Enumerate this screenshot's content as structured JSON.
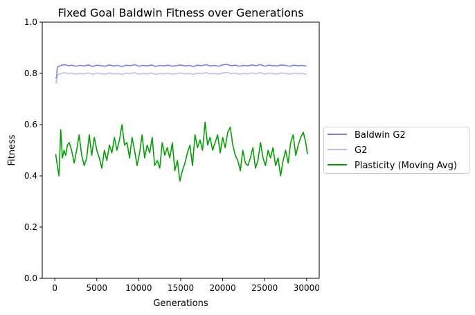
{
  "chart_data": {
    "type": "line",
    "title": "Fixed Goal Baldwin Fitness over Generations",
    "xlabel": "Generations",
    "ylabel": "Fitness",
    "xlim": [
      -1500,
      31500
    ],
    "ylim": [
      0.0,
      1.0
    ],
    "xticks": [
      0,
      5000,
      10000,
      15000,
      20000,
      25000,
      30000
    ],
    "yticks": [
      0.0,
      0.2,
      0.4,
      0.6,
      0.8,
      1.0
    ],
    "xtick_labels": [
      "0",
      "5000",
      "10000",
      "15000",
      "20000",
      "25000",
      "30000"
    ],
    "ytick_labels": [
      "0.0",
      "0.2",
      "0.4",
      "0.6",
      "0.8",
      "1.0"
    ],
    "grid": false,
    "legend_position": "outside-right",
    "series": [
      {
        "name": "Baldwin G2",
        "color": "#7b7bf0",
        "x": [
          100,
          200,
          300,
          500,
          800,
          1200,
          1600,
          2000,
          2500,
          3000,
          3500,
          4000,
          4500,
          5000,
          5500,
          6000,
          6500,
          7000,
          7500,
          8000,
          8500,
          9000,
          9500,
          10000,
          10500,
          11000,
          11500,
          12000,
          12500,
          13000,
          13500,
          14000,
          14500,
          15000,
          15500,
          16000,
          16500,
          17000,
          17500,
          18000,
          18500,
          19000,
          19500,
          20000,
          20500,
          21000,
          21500,
          22000,
          22500,
          23000,
          23500,
          24000,
          24500,
          25000,
          25500,
          26000,
          26500,
          27000,
          27500,
          28000,
          28500,
          29000,
          29500,
          30000
        ],
        "values": [
          0.785,
          0.78,
          0.825,
          0.828,
          0.832,
          0.834,
          0.83,
          0.832,
          0.828,
          0.831,
          0.829,
          0.833,
          0.827,
          0.832,
          0.83,
          0.828,
          0.833,
          0.829,
          0.831,
          0.827,
          0.832,
          0.83,
          0.834,
          0.828,
          0.831,
          0.829,
          0.833,
          0.827,
          0.831,
          0.829,
          0.832,
          0.828,
          0.83,
          0.833,
          0.829,
          0.831,
          0.827,
          0.832,
          0.83,
          0.834,
          0.829,
          0.831,
          0.828,
          0.833,
          0.835,
          0.83,
          0.832,
          0.828,
          0.831,
          0.829,
          0.833,
          0.83,
          0.834,
          0.828,
          0.832,
          0.83,
          0.829,
          0.833,
          0.831,
          0.828,
          0.832,
          0.83,
          0.831,
          0.828
        ]
      },
      {
        "name": "G2",
        "color": "#bdbdf5",
        "x": [
          100,
          200,
          300,
          500,
          800,
          1200,
          1600,
          2000,
          2500,
          3000,
          3500,
          4000,
          4500,
          5000,
          5500,
          6000,
          6500,
          7000,
          7500,
          8000,
          8500,
          9000,
          9500,
          10000,
          10500,
          11000,
          11500,
          12000,
          12500,
          13000,
          13500,
          14000,
          14500,
          15000,
          15500,
          16000,
          16500,
          17000,
          17500,
          18000,
          18500,
          19000,
          19500,
          20000,
          20500,
          21000,
          21500,
          22000,
          22500,
          23000,
          23500,
          24000,
          24500,
          25000,
          25500,
          26000,
          26500,
          27000,
          27500,
          28000,
          28500,
          29000,
          29500,
          30000
        ],
        "values": [
          0.77,
          0.762,
          0.79,
          0.797,
          0.8,
          0.803,
          0.799,
          0.801,
          0.797,
          0.8,
          0.798,
          0.802,
          0.796,
          0.801,
          0.799,
          0.797,
          0.802,
          0.798,
          0.8,
          0.796,
          0.801,
          0.799,
          0.803,
          0.797,
          0.8,
          0.798,
          0.802,
          0.796,
          0.8,
          0.798,
          0.801,
          0.797,
          0.799,
          0.802,
          0.798,
          0.8,
          0.796,
          0.801,
          0.799,
          0.803,
          0.798,
          0.8,
          0.797,
          0.802,
          0.804,
          0.799,
          0.801,
          0.797,
          0.8,
          0.798,
          0.802,
          0.799,
          0.803,
          0.797,
          0.801,
          0.799,
          0.798,
          0.802,
          0.8,
          0.797,
          0.801,
          0.799,
          0.8,
          0.795
        ]
      },
      {
        "name": "Plasticity (Moving Avg)",
        "color": "#00a000",
        "x": [
          100,
          300,
          500,
          700,
          900,
          1100,
          1300,
          1500,
          1700,
          2000,
          2300,
          2600,
          2900,
          3200,
          3500,
          3800,
          4100,
          4400,
          4700,
          5000,
          5300,
          5600,
          5900,
          6200,
          6500,
          6800,
          7100,
          7400,
          7700,
          8000,
          8300,
          8600,
          8900,
          9200,
          9500,
          9800,
          10100,
          10400,
          10700,
          11000,
          11300,
          11600,
          11900,
          12200,
          12500,
          12800,
          13100,
          13400,
          13700,
          14000,
          14300,
          14600,
          14900,
          15200,
          15500,
          15800,
          16100,
          16400,
          16700,
          17000,
          17300,
          17600,
          17900,
          18200,
          18500,
          18800,
          19100,
          19400,
          19700,
          20000,
          20300,
          20600,
          20900,
          21200,
          21500,
          21800,
          22100,
          22400,
          22700,
          23000,
          23300,
          23600,
          23900,
          24200,
          24500,
          24800,
          25100,
          25400,
          25700,
          26000,
          26300,
          26600,
          26900,
          27200,
          27500,
          27800,
          28100,
          28400,
          28700,
          29000,
          29300,
          29600,
          29900,
          30100
        ],
        "values": [
          0.485,
          0.44,
          0.4,
          0.58,
          0.47,
          0.5,
          0.48,
          0.52,
          0.53,
          0.5,
          0.45,
          0.5,
          0.56,
          0.48,
          0.44,
          0.47,
          0.56,
          0.48,
          0.55,
          0.5,
          0.47,
          0.43,
          0.5,
          0.46,
          0.52,
          0.49,
          0.55,
          0.5,
          0.54,
          0.6,
          0.52,
          0.53,
          0.47,
          0.55,
          0.5,
          0.44,
          0.49,
          0.56,
          0.47,
          0.52,
          0.49,
          0.55,
          0.44,
          0.46,
          0.43,
          0.53,
          0.48,
          0.51,
          0.47,
          0.53,
          0.42,
          0.46,
          0.38,
          0.42,
          0.45,
          0.49,
          0.52,
          0.44,
          0.56,
          0.51,
          0.54,
          0.5,
          0.61,
          0.52,
          0.55,
          0.5,
          0.53,
          0.56,
          0.49,
          0.55,
          0.51,
          0.57,
          0.59,
          0.52,
          0.48,
          0.46,
          0.42,
          0.5,
          0.45,
          0.44,
          0.47,
          0.51,
          0.43,
          0.46,
          0.53,
          0.47,
          0.44,
          0.5,
          0.47,
          0.51,
          0.44,
          0.47,
          0.4,
          0.46,
          0.5,
          0.45,
          0.53,
          0.56,
          0.48,
          0.52,
          0.55,
          0.57,
          0.53,
          0.485
        ]
      }
    ]
  }
}
